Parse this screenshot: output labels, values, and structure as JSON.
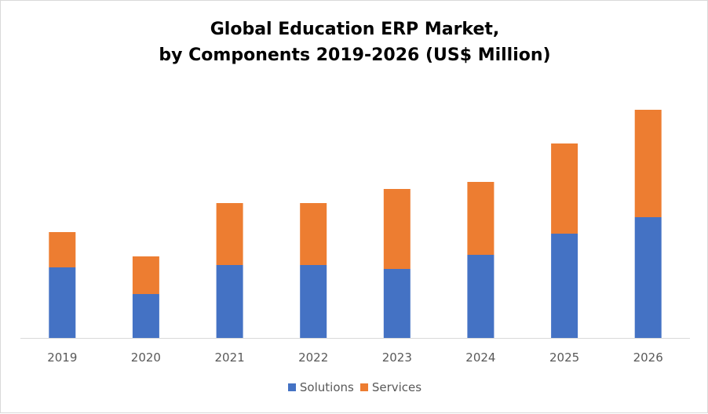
{
  "colors": {
    "solutions": "#4472c4",
    "services": "#ed7d31",
    "axis": "#d9d9d9",
    "tick_text": "#595959"
  },
  "chart_data": {
    "type": "bar",
    "stacked": true,
    "title": "Global Education ERP Market,",
    "subtitle": "by Components 2019-2026 (US$ Million)",
    "xlabel": "",
    "ylabel": "",
    "categories": [
      "2019",
      "2020",
      "2021",
      "2022",
      "2023",
      "2024",
      "2025",
      "2026"
    ],
    "series": [
      {
        "name": "Solutions",
        "color": "#4472c4",
        "values": [
          90,
          56,
          93,
          93,
          88,
          106,
          133,
          154
        ]
      },
      {
        "name": "Services",
        "color": "#ed7d31",
        "values": [
          45,
          48,
          79,
          79,
          102,
          93,
          115,
          137
        ]
      }
    ],
    "ylim": [
      0,
      300
    ],
    "grid": false,
    "legend_position": "bottom",
    "y_axis_visible": false
  }
}
